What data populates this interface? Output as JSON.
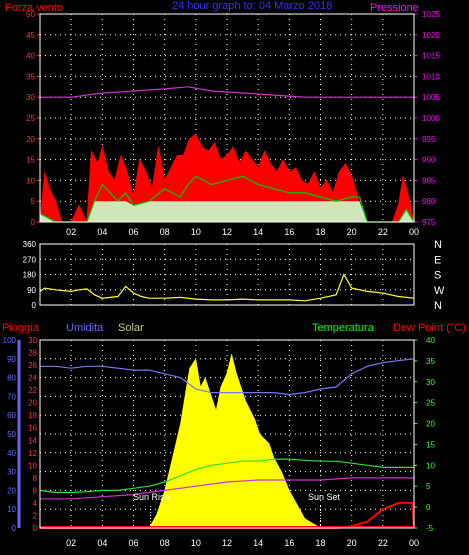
{
  "colors": {
    "background": "#000000",
    "frame": "#ffffff",
    "grid": "#ffffff",
    "wind_speed": "#ff0000",
    "wind_avg": "#00cc00",
    "wind_white": "#ffffff",
    "wind_mint": "#ccffcc",
    "pressure": "#cc33cc",
    "direction": "#ffff33",
    "rain": "#ff0000",
    "humidity": "#7777ee",
    "solar": "#ffff00",
    "temperature": "#33dd33",
    "dew_point": "#cc33cc",
    "title": "#3333ff",
    "label_red": "#ff0000",
    "label_magenta": "#ff00ff",
    "label_green": "#00ff00",
    "label_solar": "#cccc88",
    "left_axis_red": "#ff3333",
    "left_axis_blue": "#6666ff",
    "right_axis_green": "#33ff33",
    "tick_text": "#ffffff"
  },
  "header": {
    "title": "24 hour graph to: 04 Marzo 2018",
    "wind_label": "Forza vento",
    "pressure_label": "Pressione"
  },
  "lower": {
    "rain_label": "Pioggia",
    "humidity_label": "Umidita",
    "solar_label": "Solar",
    "temperature_label": "Temperatura",
    "dewpoint_label": "Dew Point (°C)",
    "sunrise_label": "Sun Rise",
    "sunset_label": "Sun Set"
  },
  "x_ticks": [
    "02",
    "04",
    "06",
    "08",
    "10",
    "12",
    "14",
    "16",
    "18",
    "20",
    "22",
    "00"
  ],
  "chart_data": [
    {
      "type": "line",
      "name": "wind_pressure",
      "title": "24 hour graph to: 04 Marzo 2018",
      "x_range_hours": [
        0,
        24
      ],
      "left_axis": {
        "label": "Forza vento",
        "ticks": [
          0,
          5,
          10,
          15,
          20,
          25,
          30,
          35,
          40,
          45,
          50
        ],
        "range": [
          0,
          50
        ]
      },
      "right_axis": {
        "label": "Pressione",
        "ticks": [
          975,
          980,
          985,
          990,
          995,
          1000,
          1005,
          1010,
          1015,
          1020,
          1025
        ],
        "range": [
          975,
          1025
        ]
      },
      "pressure": {
        "x": [
          0,
          2,
          4,
          6,
          8,
          9.5,
          11,
          13,
          15,
          17,
          19,
          21,
          23,
          24
        ],
        "y": [
          1005,
          1005,
          1006,
          1006.5,
          1007,
          1007.5,
          1006.5,
          1006,
          1005.5,
          1005,
          1005,
          1005,
          1005,
          1005
        ]
      },
      "gust_envelope": {
        "x": [
          0,
          0.3,
          0.6,
          1,
          1.4,
          2,
          2.5,
          3,
          3.3,
          3.7,
          4,
          4.4,
          4.8,
          5.2,
          5.6,
          6,
          6.4,
          6.8,
          7.2,
          7.6,
          8,
          8.4,
          8.8,
          9.2,
          9.6,
          10,
          10.4,
          10.8,
          11.2,
          11.6,
          12,
          12.4,
          12.8,
          13.2,
          13.6,
          14,
          14.4,
          14.8,
          15.2,
          15.6,
          16,
          16.4,
          16.8,
          17.2,
          17.6,
          18,
          18.4,
          18.8,
          19.2,
          19.6,
          20,
          20.4,
          20.8,
          21.5,
          22,
          22.6,
          23,
          23.3,
          23.6,
          24
        ],
        "y": [
          0,
          12,
          8,
          5,
          0,
          0,
          4,
          0,
          17,
          14,
          18,
          12,
          10,
          16,
          12,
          6,
          15,
          12,
          8,
          18,
          10,
          13,
          16,
          16,
          20,
          21,
          18,
          17,
          19,
          15,
          16,
          18,
          14,
          17,
          15,
          13,
          17,
          14,
          12,
          15,
          12,
          13,
          10,
          9,
          12,
          8,
          10,
          7,
          12,
          14,
          11,
          6,
          0,
          0,
          0,
          0,
          4,
          11,
          7,
          0
        ]
      },
      "wind_avg": {
        "x": [
          0,
          1,
          2,
          3,
          3.5,
          4,
          4.5,
          5,
          5.5,
          6,
          7,
          8,
          9,
          9.5,
          10,
          10.5,
          11,
          12,
          13,
          14,
          15,
          16,
          17,
          18,
          19,
          20,
          20.5,
          21,
          22,
          23,
          23.5,
          24
        ],
        "y": [
          2,
          0,
          0,
          0,
          5,
          9,
          7,
          5,
          7,
          4,
          5,
          8,
          6,
          9,
          11,
          10,
          9,
          10,
          11,
          9,
          8,
          7,
          7,
          6,
          5,
          6,
          6,
          0,
          0,
          0,
          3,
          0
        ]
      }
    },
    {
      "type": "line",
      "name": "wind_direction",
      "x_range_hours": [
        0,
        24
      ],
      "left_axis_ticks": [
        0,
        90,
        180,
        270,
        360
      ],
      "right_axis_labels": [
        "N",
        "W",
        "S",
        "E",
        "N"
      ],
      "direction": {
        "x": [
          0,
          0.3,
          1,
          2,
          2.5,
          3,
          3.5,
          4,
          5,
          5.5,
          6,
          6.5,
          7,
          8,
          9,
          10,
          11,
          12,
          13,
          14,
          15,
          16,
          17,
          18,
          19,
          19.5,
          20,
          21,
          22,
          23,
          24
        ],
        "y": [
          80,
          100,
          90,
          80,
          90,
          95,
          60,
          40,
          50,
          110,
          70,
          50,
          40,
          40,
          45,
          35,
          30,
          30,
          35,
          30,
          30,
          30,
          25,
          40,
          60,
          180,
          100,
          80,
          70,
          50,
          40
        ]
      }
    },
    {
      "type": "area",
      "name": "rain_humidity_solar_temperature",
      "x_range_hours": [
        0,
        24
      ],
      "left_axis_1": {
        "label": "Pioggia",
        "ticks": [
          0,
          2,
          4,
          6,
          8,
          10,
          12,
          14,
          16,
          18,
          20,
          22,
          24,
          26,
          28,
          30
        ]
      },
      "left_axis_2": {
        "label": "Umidita",
        "ticks": [
          0,
          10,
          20,
          30,
          40,
          50,
          60,
          70,
          80,
          90,
          100
        ]
      },
      "right_axis": {
        "label": "Temperatura",
        "ticks": [
          -5,
          0,
          5,
          10,
          15,
          20,
          25,
          30,
          35,
          40
        ]
      },
      "humidity": {
        "x": [
          0,
          1,
          2,
          3,
          4,
          5,
          6,
          7,
          8,
          9,
          9.5,
          10,
          11,
          12,
          13,
          14,
          15,
          16,
          17,
          18,
          19,
          20,
          21,
          22,
          23,
          24
        ],
        "y": [
          86,
          86,
          85,
          86,
          86,
          85,
          84,
          84,
          82,
          80,
          77,
          74,
          72,
          72,
          72,
          72,
          72,
          71,
          72,
          74,
          75,
          82,
          86,
          88,
          89,
          90
        ]
      },
      "solar": {
        "x": [
          0,
          7,
          7.5,
          8,
          8.5,
          9,
          9.3,
          9.6,
          10,
          10.3,
          10.6,
          11,
          11.3,
          11.6,
          12,
          12.3,
          12.6,
          12.9,
          13.2,
          13.5,
          13.8,
          14.1,
          14.4,
          14.7,
          15,
          15.5,
          16,
          16.5,
          17,
          17.5,
          18,
          24
        ],
        "y": [
          0,
          0,
          3,
          8,
          15,
          22,
          28,
          34,
          36,
          30,
          32,
          28,
          25,
          30,
          33,
          37,
          33,
          30,
          27,
          25,
          23,
          20,
          19,
          18,
          15,
          12,
          8,
          5,
          2,
          1,
          0,
          0
        ]
      },
      "temperature_c": {
        "x": [
          0,
          1,
          2,
          3,
          4,
          5,
          6,
          7,
          8,
          9,
          10,
          11,
          12,
          13,
          14,
          15,
          16,
          17,
          18,
          19,
          20,
          21,
          22,
          23,
          24
        ],
        "y": [
          4,
          3.5,
          3.5,
          3.7,
          4,
          4,
          4.5,
          5,
          6,
          7.5,
          9,
          10,
          10.5,
          11,
          11,
          11.5,
          11.5,
          11.2,
          11,
          11,
          10.5,
          10,
          9.5,
          9.5,
          9.5
        ]
      },
      "dew_point_c": {
        "x": [
          0,
          2,
          4,
          6,
          8,
          10,
          12,
          14,
          16,
          18,
          20,
          22,
          24
        ],
        "y": [
          2,
          2,
          2.5,
          3,
          4,
          5,
          6,
          6.5,
          6.5,
          6.5,
          7,
          7,
          7
        ]
      },
      "rain": {
        "x": [
          0,
          19,
          20,
          21,
          22,
          23,
          23.9,
          24
        ],
        "y": [
          0,
          0,
          0.3,
          1,
          3,
          4,
          4,
          0
        ]
      }
    }
  ]
}
